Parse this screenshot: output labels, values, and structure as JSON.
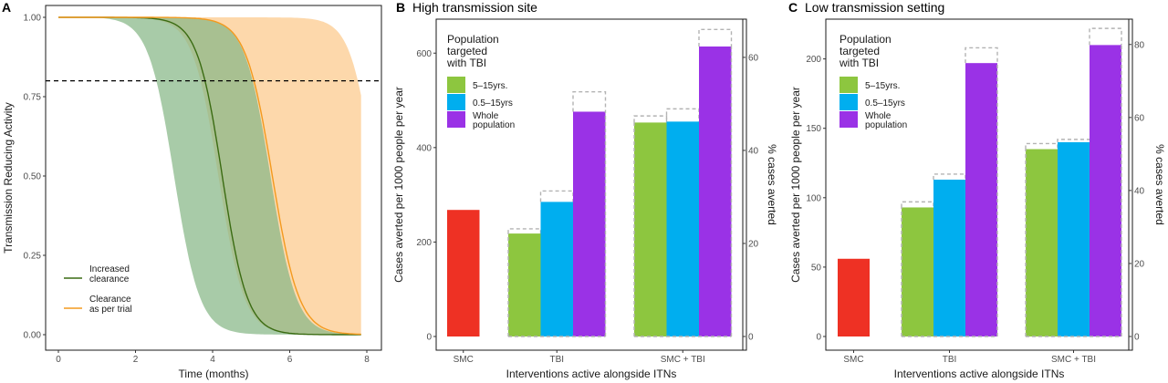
{
  "chart_data": [
    {
      "panel": "A",
      "type": "line",
      "title": "",
      "xlabel": "Time (months)",
      "ylabel": "Transmission Reducing Activity",
      "xlim": [
        0,
        8
      ],
      "ylim": [
        0,
        1
      ],
      "xticks": [
        "0",
        "2",
        "4",
        "6",
        "8"
      ],
      "yticks": [
        "0.00",
        "0.25",
        "0.50",
        "0.75",
        "1.00"
      ],
      "hline": 0.8,
      "hline_style": "dashed",
      "series": [
        {
          "name": "Increased clearance",
          "color": "#3a6b12",
          "fill": "#87b787",
          "midpoint": 4.25,
          "slope": 3.1,
          "lower_midpoint": 3.0,
          "lower_slope": 3.0,
          "upper_midpoint": 5.5,
          "upper_slope": 3.0,
          "x_end": 7.85
        },
        {
          "name": "Clearance as per trial",
          "color": "#f39a1f",
          "fill": "#fcc98b",
          "midpoint": 5.55,
          "slope": 2.9,
          "lower_midpoint": 4.15,
          "lower_slope": 3.0,
          "upper_midpoint": 8.2,
          "upper_slope": 3.2,
          "x_end": 7.85
        }
      ],
      "legend": {
        "position": "bottom-left",
        "items": [
          {
            "label_lines": [
              "Increased",
              "clearance"
            ],
            "color": "#3a6b12"
          },
          {
            "label_lines": [
              "Clearance",
              "as per trial"
            ],
            "color": "#f39a1f"
          }
        ]
      }
    },
    {
      "panel": "B",
      "type": "bar",
      "title": "High transmission site",
      "xlabel": "Interventions active alongside ITNs",
      "ylabel": "Cases averted per 1000 people per year",
      "ylabel_right": "% cases averted",
      "ylim": [
        0,
        670
      ],
      "yticks": [
        0,
        200,
        400,
        600
      ],
      "right_ticks": [
        0,
        20,
        40,
        60
      ],
      "right_factor": 9.85,
      "categories": [
        "SMC",
        "TBI",
        "SMC + TBI"
      ],
      "legend": {
        "title_lines": [
          "Population",
          "targeted",
          "with TBI"
        ],
        "items": [
          {
            "label_lines": [
              "5–15yrs."
            ],
            "color": "#8dc63f"
          },
          {
            "label_lines": [
              "0.5–15yrs"
            ],
            "color": "#00aeef"
          },
          {
            "label_lines": [
              "Whole",
              "population"
            ],
            "color": "#9a32e6"
          }
        ]
      },
      "bars": [
        {
          "category": "SMC",
          "group": "SMC",
          "value": 268,
          "color": "#ee3124"
        },
        {
          "category": "TBI",
          "group": "5–15yrs.",
          "value": 218,
          "upper": 228,
          "color": "#8dc63f"
        },
        {
          "category": "TBI",
          "group": "0.5–15yrs",
          "value": 285,
          "upper": 308,
          "color": "#00aeef"
        },
        {
          "category": "TBI",
          "group": "Whole population",
          "value": 476,
          "upper": 518,
          "color": "#9a32e6"
        },
        {
          "category": "SMC + TBI",
          "group": "5–15yrs.",
          "value": 453,
          "upper": 467,
          "color": "#8dc63f"
        },
        {
          "category": "SMC + TBI",
          "group": "0.5–15yrs",
          "value": 455,
          "upper": 482,
          "color": "#00aeef"
        },
        {
          "category": "SMC + TBI",
          "group": "Whole population",
          "value": 614,
          "upper": 650,
          "color": "#9a32e6"
        }
      ]
    },
    {
      "panel": "C",
      "type": "bar",
      "title": "Low transmission setting",
      "xlabel": "Interventions active alongside ITNs",
      "ylabel": "Cases averted per 1000 people per year",
      "ylabel_right": "% cases averted",
      "ylim": [
        0,
        228
      ],
      "yticks": [
        0,
        50,
        100,
        150,
        200
      ],
      "right_ticks": [
        0,
        20,
        40,
        60,
        80
      ],
      "right_factor": 2.63,
      "categories": [
        "SMC",
        "TBI",
        "SMC + TBI"
      ],
      "legend": {
        "title_lines": [
          "Population",
          "targeted",
          "with TBI"
        ],
        "items": [
          {
            "label_lines": [
              "5–15yrs."
            ],
            "color": "#8dc63f"
          },
          {
            "label_lines": [
              "0.5–15yrs"
            ],
            "color": "#00aeef"
          },
          {
            "label_lines": [
              "Whole",
              "population"
            ],
            "color": "#9a32e6"
          }
        ]
      },
      "bars": [
        {
          "category": "SMC",
          "group": "SMC",
          "value": 56,
          "color": "#ee3124"
        },
        {
          "category": "TBI",
          "group": "5–15yrs.",
          "value": 93,
          "upper": 97,
          "color": "#8dc63f"
        },
        {
          "category": "TBI",
          "group": "0.5–15yrs",
          "value": 113,
          "upper": 117,
          "color": "#00aeef"
        },
        {
          "category": "TBI",
          "group": "Whole population",
          "value": 197,
          "upper": 208,
          "color": "#9a32e6"
        },
        {
          "category": "SMC + TBI",
          "group": "5–15yrs.",
          "value": 135,
          "upper": 139,
          "color": "#8dc63f"
        },
        {
          "category": "SMC + TBI",
          "group": "0.5–15yrs",
          "value": 140,
          "upper": 142,
          "color": "#00aeef"
        },
        {
          "category": "SMC + TBI",
          "group": "Whole population",
          "value": 210,
          "upper": 222,
          "color": "#9a32e6"
        }
      ]
    }
  ]
}
